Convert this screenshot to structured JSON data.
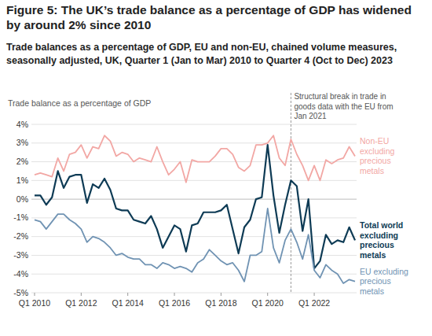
{
  "chart_data": {
    "type": "line",
    "title": "Figure 5: The UK’s trade balance as a percentage of GDP has widened by around 2% since 2010",
    "subtitle": "Trade balances as a percentage of GDP, EU and non-EU, chained volume measures, seasonally adjusted, UK, Quarter 1 (Jan to Mar) 2010 to Quarter 4 (Oct to Dec) 2023",
    "y_label": "Trade balance as a percentage of GDP",
    "categories": [
      "Q1 2010",
      null,
      null,
      null,
      null,
      null,
      null,
      null,
      "Q1 2012",
      null,
      null,
      null,
      null,
      null,
      null,
      null,
      "Q1 2014",
      null,
      null,
      null,
      null,
      null,
      null,
      null,
      "Q1 2016",
      null,
      null,
      null,
      null,
      null,
      null,
      null,
      "Q1 2018",
      null,
      null,
      null,
      null,
      null,
      null,
      null,
      "Q1 2020",
      null,
      null,
      null,
      null,
      null,
      null,
      null,
      "Q1 2022",
      null,
      null,
      null,
      null,
      null,
      null,
      null
    ],
    "ylim": [
      -5,
      4
    ],
    "yticks": [
      {
        "value": 4,
        "label": "4%"
      },
      {
        "value": 3,
        "label": "3%"
      },
      {
        "value": 2,
        "label": "2%"
      },
      {
        "value": 1,
        "label": "1%"
      },
      {
        "value": 0,
        "label": "0%"
      },
      {
        "value": -1,
        "label": "-1%"
      },
      {
        "value": -2,
        "label": "-2%"
      },
      {
        "value": -3,
        "label": "-3%"
      },
      {
        "value": -4,
        "label": "-4%"
      },
      {
        "value": -5,
        "label": "-5%"
      }
    ],
    "grid": true,
    "annotations": [
      {
        "lines": [
          "Structural break in trade in",
          "goods data with the EU from",
          "Jan 2021"
        ],
        "x": 44
      }
    ],
    "series": [
      {
        "name": "Non-EU excluding precious metals",
        "color": "#f2a7a4",
        "values": [
          1.3,
          1.4,
          1.3,
          1.2,
          2.2,
          1.5,
          2.4,
          2.5,
          2.9,
          2.2,
          2.8,
          2.7,
          3.4,
          3.1,
          2.3,
          2.5,
          2.4,
          2.0,
          2.2,
          2.1,
          2.0,
          2.8,
          2.0,
          1.3,
          1.6,
          2.0,
          0.9,
          2.1,
          2.0,
          2.0,
          2.0,
          2.3,
          2.7,
          2.7,
          2.4,
          1.7,
          1.5,
          1.8,
          2.9,
          2.9,
          3.0,
          3.4,
          2.2,
          1.8,
          3.2,
          2.4,
          1.8,
          1.0,
          1.8,
          1.0,
          2.1,
          1.9,
          2.1,
          2.2,
          2.8,
          2.3
        ]
      },
      {
        "name": "Total world excluding precious metals",
        "color": "#0e3b55",
        "values": [
          0.2,
          0.2,
          -0.3,
          0.1,
          1.5,
          0.6,
          1.2,
          1.3,
          1.3,
          -0.2,
          0.8,
          0.6,
          1.1,
          0.5,
          -0.5,
          -0.6,
          -0.6,
          -1.1,
          -1.2,
          -1.3,
          -0.9,
          -1.6,
          -2.6,
          -2.0,
          -1.4,
          -1.6,
          -2.8,
          -1.4,
          -1.3,
          -0.7,
          -0.7,
          -0.7,
          -0.6,
          -0.3,
          -1.6,
          -2.9,
          -1.5,
          -1.1,
          0.0,
          0.1,
          2.9,
          0.2,
          -1.8,
          -0.3,
          1.0,
          0.7,
          -1.7,
          0.0,
          -3.7,
          -3.3,
          -1.9,
          -2.4,
          -2.2,
          -2.3,
          -1.5,
          -2.2
        ]
      },
      {
        "name": "EU excluding precious metals",
        "color": "#7093b3",
        "values": [
          -1.1,
          -1.2,
          -1.6,
          -1.2,
          -0.8,
          -0.8,
          -1.1,
          -1.3,
          -1.6,
          -2.3,
          -2.0,
          -2.1,
          -2.3,
          -2.6,
          -3.0,
          -2.9,
          -3.1,
          -3.2,
          -3.2,
          -3.5,
          -3.5,
          -3.7,
          -3.4,
          -3.5,
          -3.7,
          -3.6,
          -3.7,
          -3.9,
          -3.4,
          -3.2,
          -2.7,
          -3.0,
          -3.3,
          -3.5,
          -3.4,
          -3.8,
          -4.4,
          -3.0,
          -3.0,
          -2.8,
          -0.5,
          -2.6,
          -3.4,
          -2.2,
          -1.6,
          -2.3,
          -3.2,
          -1.9,
          -3.8,
          -4.2,
          -3.5,
          -3.8,
          -4.0,
          -4.5,
          -4.3,
          -4.4
        ]
      }
    ]
  }
}
